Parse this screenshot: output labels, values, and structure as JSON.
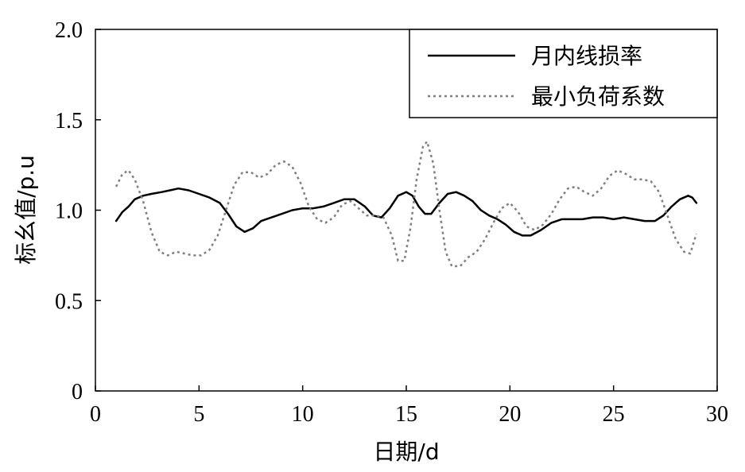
{
  "chart_data": {
    "type": "line",
    "xlabel": "日期/d",
    "ylabel": "标幺值/p.u",
    "xlim": [
      0,
      30
    ],
    "ylim": [
      0,
      2.0
    ],
    "x_ticks": [
      "0",
      "5",
      "10",
      "15",
      "20",
      "25",
      "30"
    ],
    "y_ticks": [
      "0",
      "0.5",
      "1.0",
      "1.5",
      "2.0"
    ],
    "grid": false,
    "legend_position": "top-right",
    "series": [
      {
        "name": "月内线损率",
        "style": "solid",
        "color": "#000000",
        "points": [
          [
            1.0,
            0.94
          ],
          [
            1.3,
            0.99
          ],
          [
            1.6,
            1.02
          ],
          [
            1.9,
            1.06
          ],
          [
            2.3,
            1.08
          ],
          [
            2.7,
            1.09
          ],
          [
            3.2,
            1.1
          ],
          [
            3.6,
            1.11
          ],
          [
            4.0,
            1.12
          ],
          [
            4.5,
            1.11
          ],
          [
            5.0,
            1.09
          ],
          [
            5.5,
            1.07
          ],
          [
            6.0,
            1.04
          ],
          [
            6.4,
            0.98
          ],
          [
            6.8,
            0.91
          ],
          [
            7.2,
            0.88
          ],
          [
            7.6,
            0.9
          ],
          [
            8.0,
            0.94
          ],
          [
            8.5,
            0.96
          ],
          [
            9.0,
            0.98
          ],
          [
            9.5,
            1.0
          ],
          [
            10.0,
            1.01
          ],
          [
            10.5,
            1.01
          ],
          [
            11.0,
            1.02
          ],
          [
            11.5,
            1.04
          ],
          [
            12.0,
            1.06
          ],
          [
            12.5,
            1.06
          ],
          [
            13.0,
            1.02
          ],
          [
            13.4,
            0.97
          ],
          [
            13.8,
            0.96
          ],
          [
            14.2,
            1.01
          ],
          [
            14.6,
            1.08
          ],
          [
            15.0,
            1.1
          ],
          [
            15.3,
            1.08
          ],
          [
            15.6,
            1.02
          ],
          [
            15.9,
            0.98
          ],
          [
            16.2,
            0.98
          ],
          [
            16.6,
            1.04
          ],
          [
            17.0,
            1.09
          ],
          [
            17.4,
            1.1
          ],
          [
            17.8,
            1.08
          ],
          [
            18.2,
            1.05
          ],
          [
            18.6,
            1.0
          ],
          [
            19.0,
            0.97
          ],
          [
            19.4,
            0.95
          ],
          [
            19.8,
            0.92
          ],
          [
            20.2,
            0.88
          ],
          [
            20.6,
            0.86
          ],
          [
            21.0,
            0.86
          ],
          [
            21.5,
            0.89
          ],
          [
            22.0,
            0.93
          ],
          [
            22.5,
            0.95
          ],
          [
            23.0,
            0.95
          ],
          [
            23.5,
            0.95
          ],
          [
            24.0,
            0.96
          ],
          [
            24.5,
            0.96
          ],
          [
            25.0,
            0.95
          ],
          [
            25.5,
            0.96
          ],
          [
            26.0,
            0.95
          ],
          [
            26.5,
            0.94
          ],
          [
            27.0,
            0.94
          ],
          [
            27.4,
            0.97
          ],
          [
            27.8,
            1.02
          ],
          [
            28.2,
            1.06
          ],
          [
            28.6,
            1.08
          ],
          [
            28.8,
            1.07
          ],
          [
            29.0,
            1.04
          ]
        ]
      },
      {
        "name": "最小负荷系数",
        "style": "dotted",
        "color": "#808080",
        "points": [
          [
            1.0,
            1.13
          ],
          [
            1.3,
            1.2
          ],
          [
            1.6,
            1.22
          ],
          [
            1.9,
            1.17
          ],
          [
            2.3,
            1.05
          ],
          [
            2.7,
            0.88
          ],
          [
            3.1,
            0.77
          ],
          [
            3.5,
            0.75
          ],
          [
            3.9,
            0.77
          ],
          [
            4.3,
            0.76
          ],
          [
            4.7,
            0.75
          ],
          [
            5.1,
            0.75
          ],
          [
            5.5,
            0.78
          ],
          [
            5.9,
            0.86
          ],
          [
            6.3,
            1.0
          ],
          [
            6.7,
            1.14
          ],
          [
            7.1,
            1.21
          ],
          [
            7.5,
            1.21
          ],
          [
            7.9,
            1.18
          ],
          [
            8.3,
            1.2
          ],
          [
            8.7,
            1.25
          ],
          [
            9.1,
            1.27
          ],
          [
            9.5,
            1.24
          ],
          [
            9.9,
            1.15
          ],
          [
            10.3,
            1.02
          ],
          [
            10.7,
            0.95
          ],
          [
            11.1,
            0.93
          ],
          [
            11.5,
            0.96
          ],
          [
            11.9,
            1.03
          ],
          [
            12.3,
            1.05
          ],
          [
            12.7,
            1.01
          ],
          [
            13.1,
            0.97
          ],
          [
            13.5,
            0.97
          ],
          [
            13.9,
            0.96
          ],
          [
            14.3,
            0.86
          ],
          [
            14.6,
            0.72
          ],
          [
            14.9,
            0.72
          ],
          [
            15.2,
            0.9
          ],
          [
            15.5,
            1.17
          ],
          [
            15.8,
            1.35
          ],
          [
            16.0,
            1.38
          ],
          [
            16.3,
            1.26
          ],
          [
            16.6,
            1.0
          ],
          [
            16.9,
            0.77
          ],
          [
            17.2,
            0.69
          ],
          [
            17.6,
            0.69
          ],
          [
            18.0,
            0.74
          ],
          [
            18.4,
            0.77
          ],
          [
            18.8,
            0.84
          ],
          [
            19.2,
            0.93
          ],
          [
            19.6,
            1.01
          ],
          [
            20.0,
            1.04
          ],
          [
            20.4,
            0.99
          ],
          [
            20.8,
            0.91
          ],
          [
            21.2,
            0.89
          ],
          [
            21.6,
            0.92
          ],
          [
            22.0,
            0.98
          ],
          [
            22.4,
            1.06
          ],
          [
            22.8,
            1.12
          ],
          [
            23.2,
            1.13
          ],
          [
            23.6,
            1.1
          ],
          [
            24.0,
            1.08
          ],
          [
            24.4,
            1.12
          ],
          [
            24.8,
            1.19
          ],
          [
            25.2,
            1.22
          ],
          [
            25.6,
            1.2
          ],
          [
            26.0,
            1.17
          ],
          [
            26.4,
            1.17
          ],
          [
            26.8,
            1.16
          ],
          [
            27.2,
            1.1
          ],
          [
            27.6,
            0.97
          ],
          [
            28.0,
            0.84
          ],
          [
            28.4,
            0.77
          ],
          [
            28.7,
            0.76
          ],
          [
            29.0,
            0.87
          ]
        ]
      }
    ]
  }
}
